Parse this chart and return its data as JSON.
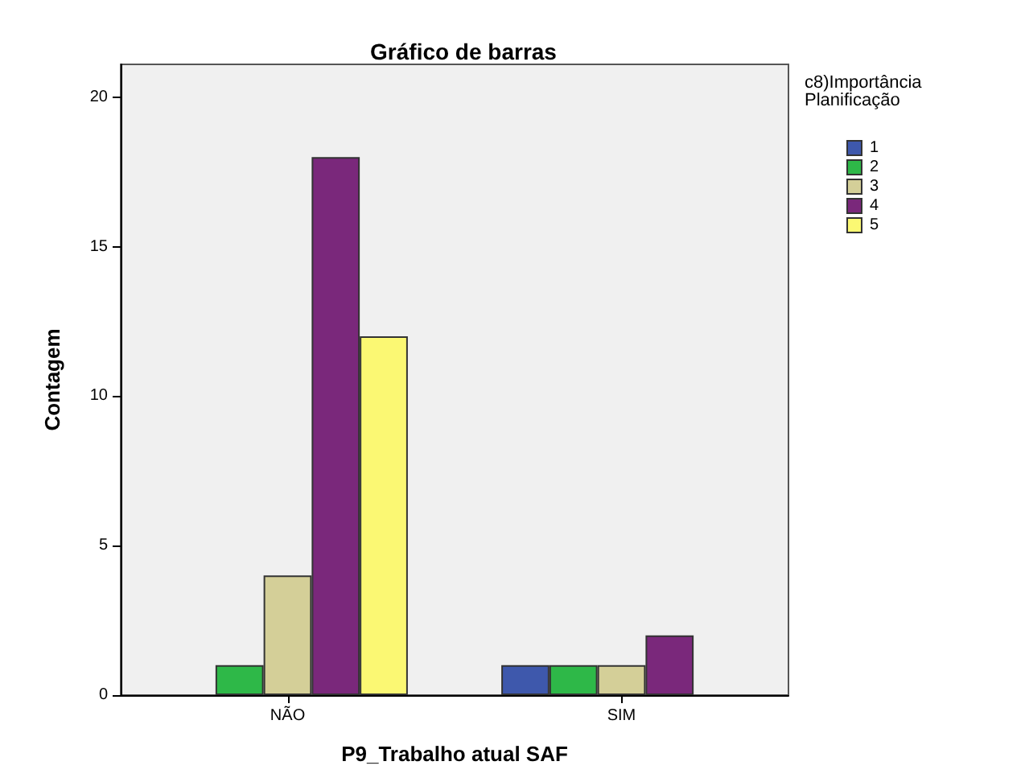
{
  "chart_data": {
    "type": "bar",
    "title": "Gráfico de barras",
    "xlabel": "P9_Trabalho atual SAF",
    "ylabel": "Contagem",
    "legend_title": "c8)Importância\nPlanificação",
    "categories": [
      "NÃO",
      "SIM"
    ],
    "series": [
      {
        "name": "1",
        "color": "#3e58ac",
        "values": [
          null,
          1
        ]
      },
      {
        "name": "2",
        "color": "#2eb848",
        "values": [
          1,
          1
        ]
      },
      {
        "name": "3",
        "color": "#d4cf98",
        "values": [
          4,
          1
        ]
      },
      {
        "name": "4",
        "color": "#7a287b",
        "values": [
          18,
          2
        ]
      },
      {
        "name": "5",
        "color": "#fbf873",
        "values": [
          12,
          null
        ]
      }
    ],
    "ylim": [
      0,
      21.1
    ],
    "yticks": [
      0,
      5,
      10,
      15,
      20
    ],
    "grid": false,
    "legend": "right"
  }
}
